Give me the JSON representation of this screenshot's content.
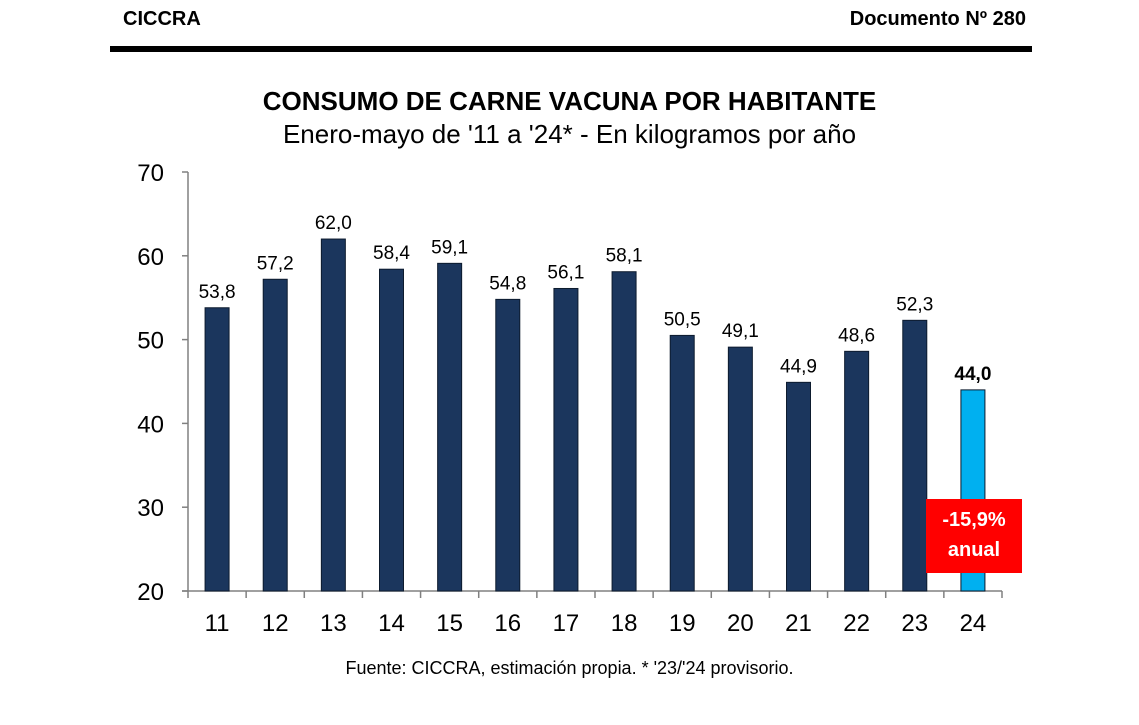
{
  "header": {
    "org": "CICCRA",
    "doc": "Documento Nº 280"
  },
  "footer": {
    "source": "Fuente: CICCRA, estimación propia. * '23/'24 provisorio."
  },
  "annotation": {
    "line1": "-15,9%",
    "line2": "anual",
    "color": "#ff0000"
  },
  "chart_data": {
    "type": "bar",
    "title": "CONSUMO DE CARNE VACUNA POR HABITANTE",
    "subtitle": "Enero-mayo de '11 a '24* - En kilogramos por año",
    "xlabel": "",
    "ylabel": "",
    "ylim": [
      20,
      70
    ],
    "yticks": [
      20,
      30,
      40,
      50,
      60,
      70
    ],
    "grid": false,
    "categories": [
      "11",
      "12",
      "13",
      "14",
      "15",
      "16",
      "17",
      "18",
      "19",
      "20",
      "21",
      "22",
      "23",
      "24"
    ],
    "values": [
      53.8,
      57.2,
      62.0,
      58.4,
      59.1,
      54.8,
      56.1,
      58.1,
      50.5,
      49.1,
      44.9,
      48.6,
      52.3,
      44.0
    ],
    "labels": [
      "53,8",
      "57,2",
      "62,0",
      "58,4",
      "59,1",
      "54,8",
      "56,1",
      "58,1",
      "50,5",
      "49,1",
      "44,9",
      "48,6",
      "52,3",
      "44,0"
    ],
    "highlight_index": 13,
    "colors": {
      "bar": "#1b365d",
      "highlight": "#00b0f0"
    }
  }
}
